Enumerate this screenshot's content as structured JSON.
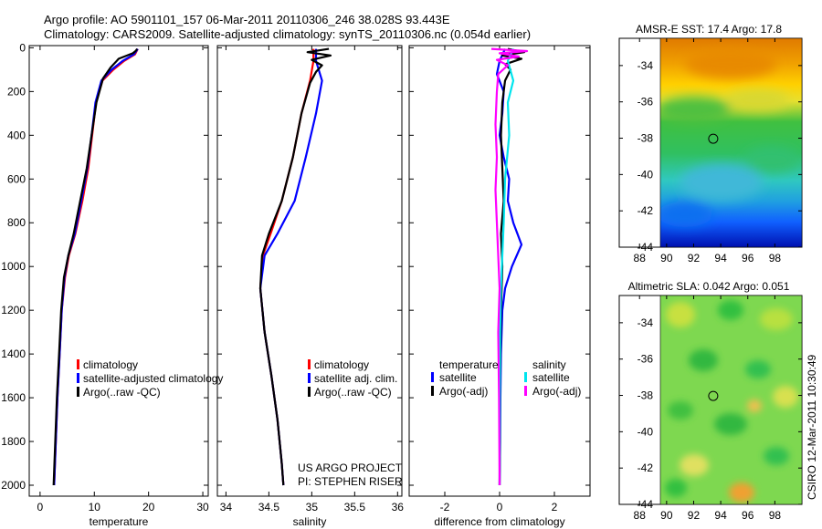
{
  "header": {
    "title_line1": "Argo profile: AO 5901101_157 06-Mar-2011 20110306_246 38.028S 93.443E",
    "title_line2": "Climatology: CARS2009. Satellite-adjusted climatology: synTS_20110306.nc (0.054d earlier)"
  },
  "credits": {
    "project": "US ARGO PROJECT",
    "pi": "PI: STEPHEN RISER",
    "timestamp": "CSIRO 12-Mar-2011 10:30:49"
  },
  "colors": {
    "climatology": "#ff0000",
    "satellite": "#0000ff",
    "argo": "#000000",
    "sal_satellite": "#00e5ee",
    "sal_argo": "#ff00ff"
  },
  "chart_data": [
    {
      "type": "line",
      "name": "temperature-profile",
      "xlabel": "temperature",
      "ylabel": "",
      "xlim": [
        -2,
        31
      ],
      "ylim": [
        2050,
        -10
      ],
      "xticks": [
        0,
        10,
        20,
        30
      ],
      "yticks": [
        0,
        200,
        400,
        600,
        800,
        1000,
        1200,
        1400,
        1600,
        1800,
        2000
      ],
      "legend": {
        "placement": "bottom-right",
        "entries": [
          "climatology",
          "satellite-adjusted climatology",
          "Argo(..raw -QC)"
        ]
      },
      "series": [
        {
          "name": "climatology",
          "color": "#ff0000",
          "points": [
            [
              18.0,
              5
            ],
            [
              17.5,
              30
            ],
            [
              15.5,
              60
            ],
            [
              13.5,
              100
            ],
            [
              11.5,
              150
            ],
            [
              10.3,
              250
            ],
            [
              9.6,
              400
            ],
            [
              8.9,
              550
            ],
            [
              7.8,
              700
            ],
            [
              6.5,
              850
            ],
            [
              5.3,
              950
            ],
            [
              4.6,
              1050
            ],
            [
              4.0,
              1200
            ],
            [
              3.6,
              1400
            ],
            [
              3.2,
              1600
            ],
            [
              2.9,
              1800
            ],
            [
              2.6,
              2000
            ]
          ]
        },
        {
          "name": "satellite-adjusted climatology",
          "color": "#0000ff",
          "points": [
            [
              18.0,
              5
            ],
            [
              17.3,
              30
            ],
            [
              15.2,
              60
            ],
            [
              13.2,
              100
            ],
            [
              11.3,
              150
            ],
            [
              10.2,
              250
            ],
            [
              9.5,
              400
            ],
            [
              8.7,
              550
            ],
            [
              7.6,
              700
            ],
            [
              6.4,
              850
            ],
            [
              5.2,
              950
            ],
            [
              4.5,
              1050
            ],
            [
              4.0,
              1200
            ],
            [
              3.6,
              1400
            ],
            [
              3.2,
              1600
            ],
            [
              2.9,
              1800
            ],
            [
              2.6,
              2000
            ]
          ]
        },
        {
          "name": "Argo(..raw -QC)",
          "color": "#000000",
          "points": [
            [
              17.9,
              5
            ],
            [
              17.6,
              15
            ],
            [
              17.1,
              25
            ],
            [
              14.5,
              50
            ],
            [
              13.0,
              90
            ],
            [
              11.6,
              140
            ],
            [
              10.4,
              250
            ],
            [
              9.5,
              400
            ],
            [
              8.6,
              550
            ],
            [
              7.4,
              700
            ],
            [
              6.2,
              850
            ],
            [
              5.2,
              950
            ],
            [
              4.4,
              1050
            ],
            [
              3.9,
              1200
            ],
            [
              3.5,
              1400
            ],
            [
              3.1,
              1600
            ],
            [
              2.8,
              1800
            ],
            [
              2.5,
              2000
            ]
          ]
        }
      ]
    },
    {
      "type": "line",
      "name": "salinity-profile",
      "xlabel": "salinity",
      "ylabel": "",
      "xlim": [
        33.9,
        36.05
      ],
      "ylim": [
        2050,
        -10
      ],
      "xticks": [
        34,
        34.5,
        35,
        35.5,
        36
      ],
      "xtick_labels": [
        "34",
        "34.5",
        "35",
        "35.5",
        "36"
      ],
      "legend": {
        "placement": "bottom-right",
        "entries": [
          "climatology",
          "satellite adj. clim.",
          "Argo(..raw -QC)"
        ]
      },
      "series": [
        {
          "name": "climatology",
          "color": "#ff0000",
          "points": [
            [
              35.02,
              5
            ],
            [
              35.02,
              60
            ],
            [
              34.98,
              150
            ],
            [
              34.88,
              300
            ],
            [
              34.78,
              500
            ],
            [
              34.65,
              700
            ],
            [
              34.52,
              850
            ],
            [
              34.43,
              950
            ],
            [
              34.4,
              1100
            ],
            [
              34.45,
              1300
            ],
            [
              34.53,
              1500
            ],
            [
              34.6,
              1700
            ],
            [
              34.65,
              1900
            ],
            [
              34.67,
              2000
            ]
          ]
        },
        {
          "name": "satellite adj. clim.",
          "color": "#0000ff",
          "points": [
            [
              35.05,
              5
            ],
            [
              35.05,
              60
            ],
            [
              35.12,
              150
            ],
            [
              35.05,
              300
            ],
            [
              34.93,
              500
            ],
            [
              34.8,
              700
            ],
            [
              34.6,
              850
            ],
            [
              34.45,
              950
            ],
            [
              34.4,
              1100
            ],
            [
              34.45,
              1300
            ],
            [
              34.53,
              1500
            ],
            [
              34.6,
              1700
            ],
            [
              34.65,
              1900
            ],
            [
              34.67,
              2000
            ]
          ]
        },
        {
          "name": "Argo(..raw -QC)",
          "color": "#000000",
          "points": [
            [
              35.2,
              5
            ],
            [
              34.95,
              20
            ],
            [
              35.22,
              35
            ],
            [
              35.0,
              55
            ],
            [
              35.12,
              80
            ],
            [
              35.05,
              110
            ],
            [
              34.98,
              160
            ],
            [
              34.88,
              300
            ],
            [
              34.78,
              500
            ],
            [
              34.65,
              700
            ],
            [
              34.5,
              850
            ],
            [
              34.42,
              950
            ],
            [
              34.4,
              1100
            ],
            [
              34.45,
              1300
            ],
            [
              34.53,
              1500
            ],
            [
              34.6,
              1700
            ],
            [
              34.65,
              1900
            ],
            [
              34.67,
              2000
            ]
          ]
        }
      ]
    },
    {
      "type": "line",
      "name": "difference-profile",
      "xlabel": "difference from climatology",
      "ylabel": "",
      "xlim": [
        -3.3,
        3.3
      ],
      "ylim": [
        2050,
        -10
      ],
      "xticks": [
        -2,
        0,
        2
      ],
      "legend": {
        "placement": "bottom",
        "temperature_title": "temperature",
        "salinity_title": "salinity",
        "entries": [
          "satellite",
          "Argo(-adj)",
          "satellite",
          "Argo(-adj)"
        ]
      },
      "series": [
        {
          "name": "temperature satellite",
          "color": "#0000ff",
          "points": [
            [
              0.2,
              5
            ],
            [
              0.0,
              60
            ],
            [
              -0.1,
              120
            ],
            [
              0.15,
              200
            ],
            [
              0.1,
              300
            ],
            [
              0.0,
              400
            ],
            [
              0.15,
              500
            ],
            [
              0.35,
              600
            ],
            [
              0.3,
              700
            ],
            [
              0.5,
              800
            ],
            [
              0.8,
              900
            ],
            [
              0.45,
              1000
            ],
            [
              0.2,
              1100
            ],
            [
              0.1,
              1200
            ],
            [
              0.05,
              1400
            ],
            [
              0.03,
              1600
            ],
            [
              0.02,
              1800
            ],
            [
              0.0,
              2000
            ]
          ]
        },
        {
          "name": "temperature Argo(-adj)",
          "color": "#000000",
          "points": [
            [
              0.3,
              5
            ],
            [
              0.9,
              20
            ],
            [
              0.1,
              35
            ],
            [
              0.8,
              50
            ],
            [
              0.2,
              75
            ],
            [
              0.4,
              100
            ],
            [
              0.2,
              150
            ],
            [
              0.1,
              250
            ],
            [
              0.05,
              400
            ],
            [
              0.1,
              550
            ],
            [
              0.15,
              700
            ],
            [
              0.05,
              850
            ],
            [
              0.1,
              1000
            ],
            [
              0.05,
              1200
            ],
            [
              0.02,
              1500
            ],
            [
              0.01,
              1800
            ],
            [
              0.0,
              2000
            ]
          ]
        },
        {
          "name": "salinity satellite",
          "color": "#00e5ee",
          "points": [
            [
              0.5,
              5
            ],
            [
              0.3,
              60
            ],
            [
              0.5,
              150
            ],
            [
              0.3,
              250
            ],
            [
              0.35,
              400
            ],
            [
              0.2,
              600
            ],
            [
              0.15,
              800
            ],
            [
              0.1,
              950
            ],
            [
              0.05,
              1100
            ],
            [
              0.02,
              1300
            ],
            [
              0.01,
              1600
            ],
            [
              0.0,
              2000
            ]
          ]
        },
        {
          "name": "salinity Argo(-adj)",
          "color": "#ff00ff",
          "points": [
            [
              -0.3,
              5
            ],
            [
              1.0,
              15
            ],
            [
              0.0,
              25
            ],
            [
              0.7,
              40
            ],
            [
              -0.1,
              55
            ],
            [
              0.3,
              80
            ],
            [
              -0.05,
              120
            ],
            [
              -0.1,
              200
            ],
            [
              -0.15,
              350
            ],
            [
              -0.1,
              500
            ],
            [
              -0.15,
              650
            ],
            [
              -0.1,
              800
            ],
            [
              -0.05,
              950
            ],
            [
              0.0,
              1100
            ],
            [
              -0.05,
              1300
            ],
            [
              -0.02,
              1600
            ],
            [
              0.0,
              2000
            ]
          ]
        }
      ]
    },
    {
      "type": "heatmap",
      "name": "sst-map",
      "title": "AMSR-E SST: 17.4 Argo: 17.8",
      "xlim": [
        86.5,
        100
      ],
      "ylim": [
        -44,
        -32.5
      ],
      "xticks": [
        88,
        90,
        92,
        94,
        96,
        98
      ],
      "yticks": [
        -34,
        -36,
        -38,
        -40,
        -42,
        -44
      ],
      "data_extent": {
        "lon": [
          90,
          100
        ],
        "lat": [
          -44,
          -32.5
        ]
      },
      "marker": {
        "lon": 93.443,
        "lat": -38.028
      }
    },
    {
      "type": "heatmap",
      "name": "sla-map",
      "title": "Altimetric SLA: 0.042 Argo: 0.051",
      "xlim": [
        86.5,
        100
      ],
      "ylim": [
        -44,
        -32.5
      ],
      "xticks": [
        88,
        90,
        92,
        94,
        96,
        98
      ],
      "yticks": [
        -34,
        -36,
        -38,
        -40,
        -42,
        -44
      ],
      "data_extent": {
        "lon": [
          90,
          100
        ],
        "lat": [
          -44,
          -32.5
        ]
      },
      "marker": {
        "lon": 93.443,
        "lat": -38.028
      }
    }
  ]
}
